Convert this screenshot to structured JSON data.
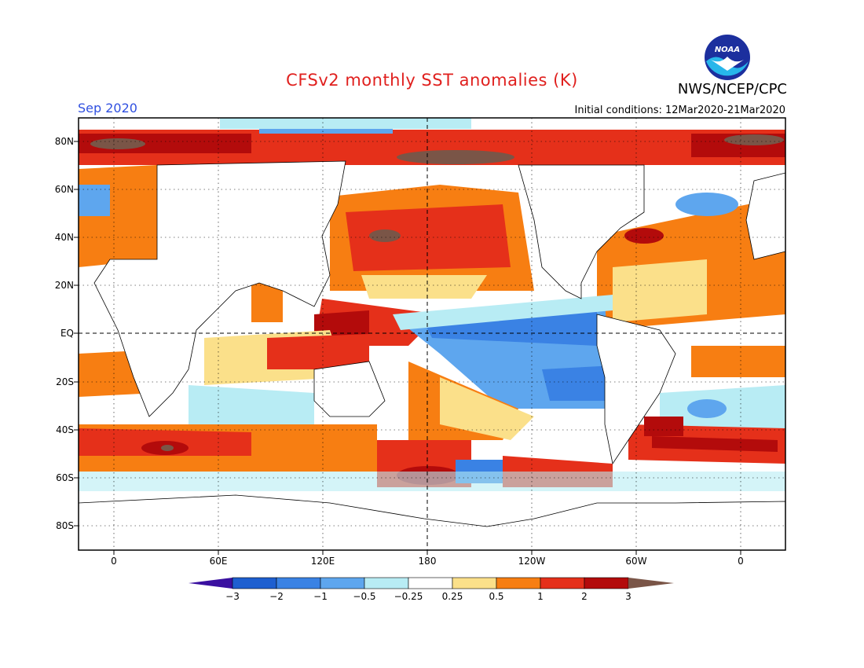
{
  "header": {
    "title": "CFSv2 monthly SST anomalies (K)",
    "org": "NWS/NCEP/CPC",
    "logo_text": "NOAA",
    "month": "Sep 2020",
    "initial_conditions": "Initial conditions: 12Mar2020-21Mar2020"
  },
  "lat_labels": [
    "80N",
    "60N",
    "40N",
    "20N",
    "EQ",
    "20S",
    "40S",
    "60S",
    "80S"
  ],
  "lon_labels": [
    "0",
    "60E",
    "120E",
    "180",
    "120W",
    "60W",
    "0"
  ],
  "colorbar": {
    "levels": [
      "-3",
      "-2",
      "-1",
      "-0.5",
      "-0.25",
      "0.25",
      "0.5",
      "1",
      "2",
      "3"
    ],
    "colors": [
      "#3a10a0",
      "#1e5fd0",
      "#3a82e4",
      "#5ea6ee",
      "#b8ecf4",
      "#ffffff",
      "#fbe08a",
      "#f77e12",
      "#e5301a",
      "#b30b0b",
      "#7a5547"
    ]
  },
  "palette": {
    "strong_warm": "#b30b0b",
    "warm": "#e5301a",
    "mild_warm": "#f77e12",
    "slight_warm": "#fbe08a",
    "slight_cool": "#b8ecf4",
    "mild_cool": "#5ea6ee",
    "cool": "#3a82e4",
    "extreme_warm": "#7a5547"
  }
}
